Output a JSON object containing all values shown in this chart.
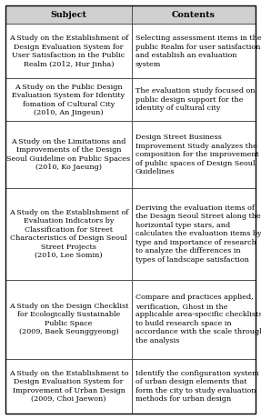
{
  "headers": [
    "Subject",
    "Contents"
  ],
  "rows": [
    [
      "A Study on the Establishment of\nDesign Evaluation System for\nUser Satisfaction in the Public\nRealm (2012, Hur Jinha)",
      "Selecting assessment items in the\npublic Realm for user satisfaction\nand establish an evaluation\nsystem"
    ],
    [
      "A Study on the Public Design\nEvaluation System for Identity\nfomation of Cultural City\n(2010, An Jingeun)",
      "The evaluation study focused on\npublic design support for the\nidentity of cultural city"
    ],
    [
      "A Study on the Limitations and\nImprovements of the Design\nSeoul Guideline on Public Spaces\n(2010, Ko Jaeung)",
      "Design Street Business\nImprovement Study analyzes the\ncomposition for the improvement\nof public spaces of Design Seoul\nGuidelines"
    ],
    [
      "A Study on the Establishment of\nEvaluation Indicators by\nClassification for Street\nCharacteristics of Design Seoul\nStreet Projects\n(2010, Lee Somin)",
      "Deriving the evaluation items of\nthe Design Seoul Street along the\nhorizontal type stars, and\ncalculates the evaluation items by\ntype and importance of research\nto analyze the differences in\ntypes of landscape satisfaction"
    ],
    [
      "A Study on the Design Checklist\nfor Ecologically Sustainable\nPublic Space\n(2009, Baek Seunggyeong)",
      "Compare and practices applied,\nverification, Ghost in the\napplicable area-specific checklists\nto build research space in\naccordance with the scale through\nthe analysis"
    ],
    [
      "A Study on the Establishment to\nDesign Evaluation System for\nImprovement of Urban Design\n(2009, Choi Jaewon)",
      "Identify the configuration system\nof urban design elements that\nform the city to study evaluation\nmethods for urban design"
    ]
  ],
  "col_split": 0.505,
  "header_bg": "#d0d0d0",
  "cell_bg": "#ffffff",
  "border_color": "#444444",
  "font_size": 5.8,
  "header_font_size": 6.8,
  "fig_width": 2.87,
  "fig_height": 4.61,
  "dpi": 100,
  "row_line_heights": [
    4,
    3,
    5,
    7,
    6,
    4
  ],
  "header_lines": 1
}
